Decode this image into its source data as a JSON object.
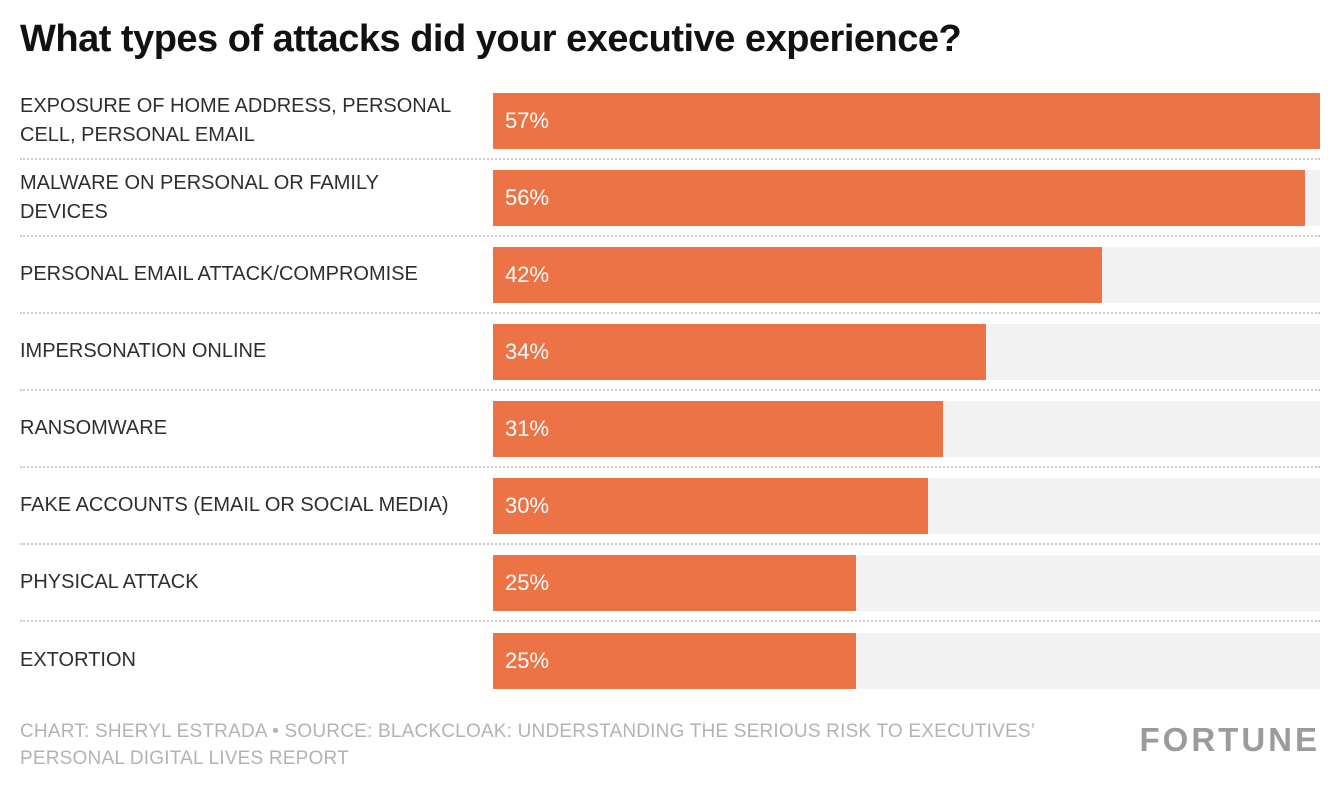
{
  "title": "What types of attacks did your executive experience?",
  "footer": {
    "credit": "CHART: SHERYL ESTRADA • SOURCE: BLACKCLOAK: UNDERSTANDING THE SERIOUS RISK TO EXECUTIVES’ PERSONAL DIGITAL LIVES REPORT",
    "brand": "FORTUNE"
  },
  "colors": {
    "bar": "#EC7346",
    "track": "#F2F2F2",
    "footer_text": "#B3B3B3"
  },
  "chart_data": {
    "type": "bar",
    "orientation": "horizontal",
    "title": "What types of attacks did your executive experience?",
    "categories": [
      "EXPOSURE OF HOME ADDRESS, PERSONAL CELL, PERSONAL EMAIL",
      "MALWARE ON PERSONAL OR FAMILY DEVICES",
      "PERSONAL EMAIL ATTACK/COMPROMISE",
      "IMPERSONATION ONLINE",
      "RANSOMWARE",
      "FAKE ACCOUNTS (EMAIL OR SOCIAL MEDIA)",
      "PHYSICAL ATTACK",
      "EXTORTION"
    ],
    "values": [
      57,
      56,
      42,
      34,
      31,
      30,
      25,
      25
    ],
    "value_suffix": "%",
    "max_scale": 57,
    "xlabel": "",
    "ylabel": "",
    "grid": false,
    "legend": false
  }
}
